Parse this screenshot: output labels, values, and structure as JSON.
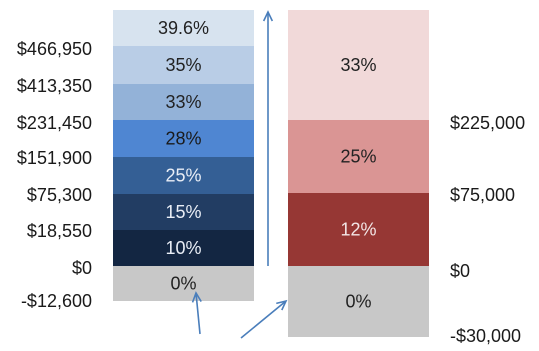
{
  "chart_data": {
    "type": "bar",
    "charts": [
      {
        "name": "",
        "bands": [
          {
            "rate": "39.6%",
            "color": "#d7e3ef",
            "text_color": "#222222"
          },
          {
            "rate": "35%",
            "color": "#b9cde6",
            "text_color": "#222222"
          },
          {
            "rate": "33%",
            "color": "#93b2d8",
            "text_color": "#222222"
          },
          {
            "rate": "28%",
            "color": "#4f86d2",
            "text_color": "#1a1a1a"
          },
          {
            "rate": "25%",
            "color": "#345f95",
            "text_color": "#e9eef6"
          },
          {
            "rate": "15%",
            "color": "#223d63",
            "text_color": "#e9eef6"
          },
          {
            "rate": "10%",
            "color": "#132642",
            "text_color": "#e9eef6"
          },
          {
            "rate": "0%",
            "color": "#c8c8c8",
            "text_color": "#222222"
          }
        ],
        "thresholds": [
          "$466,950",
          "$413,350",
          "$231,450",
          "$151,900",
          "$75,300",
          "$18,550",
          "$0",
          "-$12,600"
        ]
      },
      {
        "name": "",
        "bands": [
          {
            "rate": "33%",
            "color": "#f1d9d9",
            "text_color": "#222222"
          },
          {
            "rate": "25%",
            "color": "#da9594",
            "text_color": "#222222"
          },
          {
            "rate": "12%",
            "color": "#963734",
            "text_color": "#f3e6e6"
          },
          {
            "rate": "0%",
            "color": "#c8c8c8",
            "text_color": "#222222"
          }
        ],
        "thresholds": [
          "$225,000",
          "$75,000",
          "$0",
          "-$30,000"
        ]
      }
    ],
    "arrow_color": "#4a7ebb"
  }
}
